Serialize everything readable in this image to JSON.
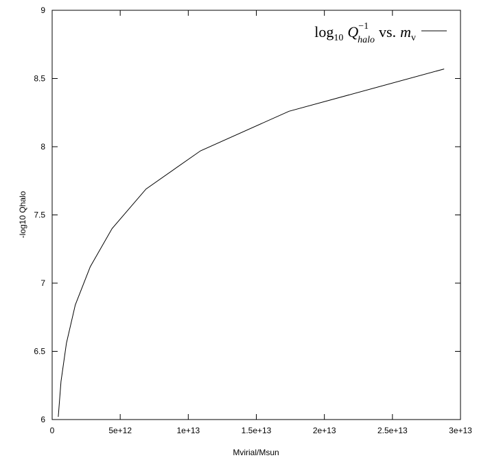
{
  "chart_data": {
    "type": "line",
    "xlabel": "Mvirial/Msun",
    "ylabel": "-log10 Qhalo",
    "xlim": [
      0,
      30000000000000.0
    ],
    "ylim": [
      6,
      9
    ],
    "x_ticks": [
      0,
      5000000000000.0,
      10000000000000.0,
      15000000000000.0,
      20000000000000.0,
      25000000000000.0,
      30000000000000.0
    ],
    "x_tick_labels": [
      "0",
      "5e+12",
      "1e+13",
      "1.5e+13",
      "2e+13",
      "2.5e+13",
      "3e+13"
    ],
    "y_ticks": [
      6,
      6.5,
      7,
      7.5,
      8,
      8.5,
      9
    ],
    "y_tick_labels": [
      "6",
      "6.5",
      "7",
      "7.5",
      "8",
      "8.5",
      "9"
    ],
    "grid": false,
    "legend_position": "top-right",
    "legend": {
      "log": "log",
      "log_sub": "10",
      "Q": "Q",
      "Q_sup": "−1",
      "Q_sub": "halo",
      "vs": "vs.",
      "m": "m",
      "m_sub": "v"
    },
    "series": [
      {
        "color": "#000000",
        "x": [
          450000000000.0,
          650000000000.0,
          1050000000000.0,
          1700000000000.0,
          2800000000000.0,
          4400000000000.0,
          6900000000000.0,
          10900000000000.0,
          17400000000000.0,
          28800000000000.0
        ],
        "y": [
          6.02,
          6.28,
          6.56,
          6.84,
          7.12,
          7.4,
          7.69,
          7.97,
          8.26,
          8.57
        ]
      }
    ]
  }
}
